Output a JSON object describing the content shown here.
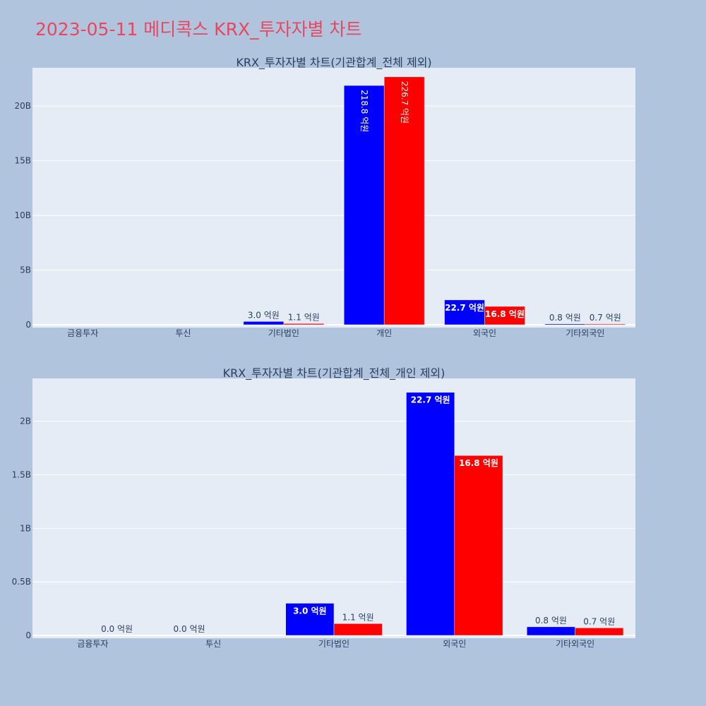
{
  "title": "2023-05-11 메디콕스 KRX_투자자별 차트",
  "colors": {
    "buy": "#0000ff",
    "sell": "#ff0000",
    "plot_bg": "#e5ecf6",
    "page_bg": "#b0c4de",
    "title": "#e8485f"
  },
  "chart_data": [
    {
      "type": "bar",
      "title": "KRX_투자자별 차트(기관합계_전체 제외)",
      "categories": [
        "금융투자",
        "투신",
        "기타법인",
        "개인",
        "외국인",
        "기타외국인"
      ],
      "series": [
        {
          "values": [
            0,
            0,
            300000000,
            21880000000,
            2270000000,
            80000000
          ],
          "labels": [
            "",
            "",
            "3.0 억원",
            "218.8 억원",
            "22.7 억원",
            "0.8 억원"
          ]
        },
        {
          "values": [
            0,
            0,
            110000000,
            22670000000,
            1680000000,
            70000000
          ],
          "labels": [
            "",
            "",
            "1.1 억원",
            "226.7 억원",
            "16.8 억원",
            "0.7 억원"
          ]
        }
      ],
      "ylim": [
        0,
        23500000000
      ],
      "yticks": [
        0,
        5000000000,
        10000000000,
        15000000000,
        20000000000
      ],
      "ytick_labels": [
        "0",
        "5B",
        "10B",
        "15B",
        "20B"
      ],
      "grid": true
    },
    {
      "type": "bar",
      "title": "KRX_투자자별 차트(기관합계_전체_개인 제외)",
      "categories": [
        "금융투자",
        "투신",
        "기타법인",
        "외국인",
        "기타외국인"
      ],
      "series": [
        {
          "values": [
            0,
            0,
            300000000,
            2270000000,
            80000000
          ],
          "labels": [
            "",
            "0.0 억원",
            "3.0 억원",
            "22.7 억원",
            "0.8 억원"
          ]
        },
        {
          "values": [
            0,
            0,
            110000000,
            1680000000,
            70000000
          ],
          "labels": [
            "0.0 억원",
            "",
            "1.1 억원",
            "16.8 억원",
            "0.7 억원"
          ]
        }
      ],
      "ylim": [
        0,
        2400000000
      ],
      "yticks": [
        0,
        500000000,
        1000000000,
        1500000000,
        2000000000
      ],
      "ytick_labels": [
        "0",
        "0.5B",
        "1B",
        "1.5B",
        "2B"
      ],
      "grid": true
    }
  ]
}
